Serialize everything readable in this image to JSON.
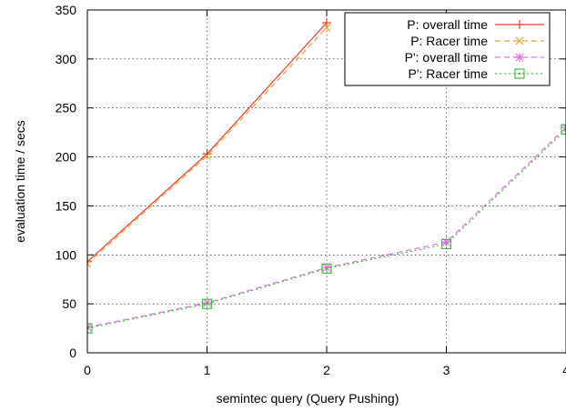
{
  "chart_data": {
    "type": "line",
    "title": "",
    "xlabel": "semintec query (Query Pushing)",
    "ylabel": "evaluation time / secs",
    "xlim": [
      0,
      4
    ],
    "ylim": [
      0,
      350
    ],
    "xticks": [
      "0",
      "1",
      "2",
      "3",
      "4"
    ],
    "yticks": [
      "0",
      "50",
      "100",
      "150",
      "200",
      "250",
      "300",
      "350"
    ],
    "grid": true,
    "legend_position": "top-right",
    "series": [
      {
        "name": "P: overall time",
        "color": "#e8392b",
        "marker": "plus",
        "dash": "solid",
        "x": [
          0,
          1,
          2
        ],
        "y": [
          93,
          203,
          337
        ]
      },
      {
        "name": "P: Racer time",
        "color": "#f0a030",
        "marker": "cross",
        "dash": "dashed",
        "x": [
          0,
          1,
          2
        ],
        "y": [
          91,
          201,
          332
        ]
      },
      {
        "name": "P': overall time",
        "color": "#e070e0",
        "marker": "star",
        "dash": "dashed",
        "x": [
          0,
          1,
          2,
          3,
          4
        ],
        "y": [
          26,
          51,
          87,
          113,
          230
        ]
      },
      {
        "name": "P': Racer time",
        "color": "#40c040",
        "marker": "box-dot",
        "dash": "dotted",
        "x": [
          0,
          1,
          2,
          3,
          4
        ],
        "y": [
          25,
          50,
          86,
          111,
          228
        ]
      }
    ]
  }
}
